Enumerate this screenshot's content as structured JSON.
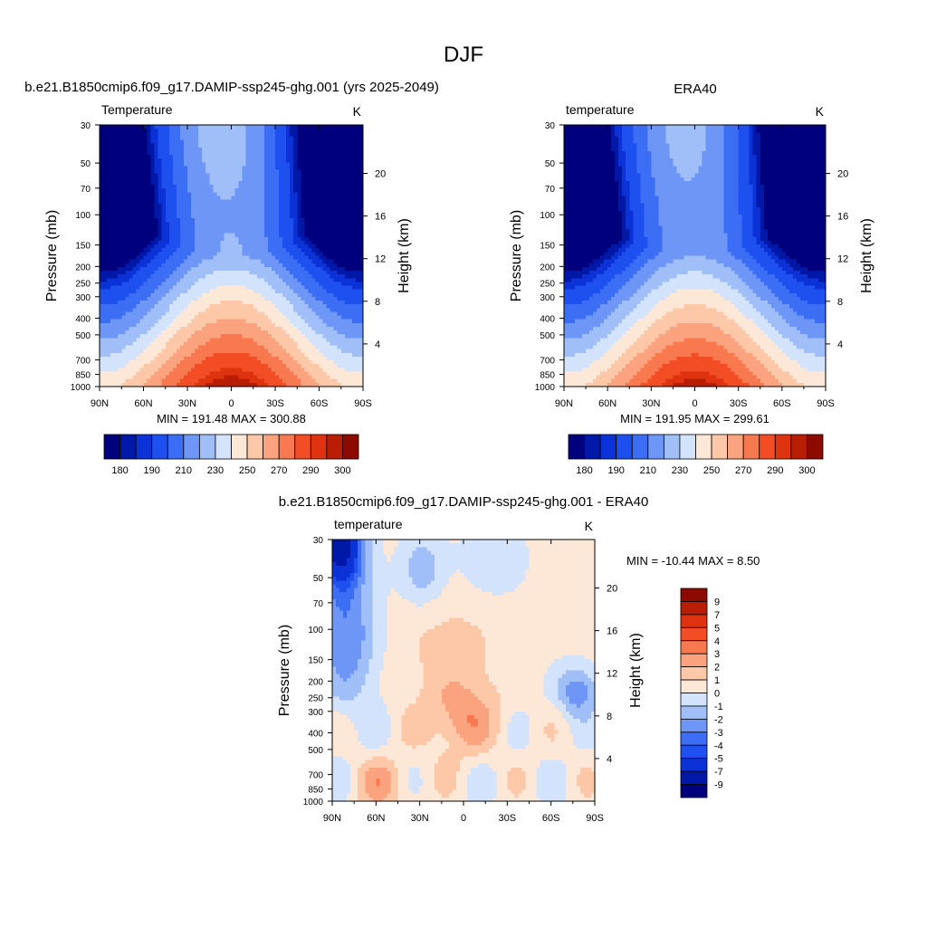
{
  "figure": {
    "season_title": "DJF"
  },
  "panels": [
    {
      "id": "model",
      "header": "b.e21.B1850cmip6.f09_g17.DAMIP-ssp245-ghg.001 (yrs 2025-2049)",
      "left_label": "Temperature",
      "right_label": "K",
      "stats": "MIN = 191.48  MAX = 300.88",
      "colorbar_tick_labels": [
        "180",
        "190",
        "210",
        "230",
        "250",
        "270",
        "290",
        "300"
      ]
    },
    {
      "id": "obs",
      "header": "ERA40",
      "left_label": "temperature",
      "right_label": "K",
      "stats": "MIN = 191.95  MAX = 299.61",
      "colorbar_tick_labels": [
        "180",
        "190",
        "210",
        "230",
        "250",
        "270",
        "290",
        "300"
      ]
    },
    {
      "id": "diff",
      "header": "b.e21.B1850cmip6.f09_g17.DAMIP-ssp245-ghg.001 - ERA40",
      "left_label": "temperature",
      "right_label": "K",
      "stats": "MIN = -10.44  MAX =   8.50",
      "colorbar_tick_labels": [
        "9",
        "7",
        "5",
        "4",
        "3",
        "2",
        "1",
        "0",
        "-1",
        "-2",
        "-3",
        "-4",
        "-5",
        "-7",
        "-9"
      ]
    }
  ],
  "axes": {
    "ylabel": "Pressure (mb)",
    "y2label": "Height (km)",
    "x_ticks": [
      "90N",
      "60N",
      "30N",
      "0",
      "30S",
      "60S",
      "90S"
    ],
    "y_ticks": [
      "30",
      "50",
      "70",
      "100",
      "150",
      "200",
      "250",
      "300",
      "400",
      "500",
      "700",
      "850",
      "1000"
    ],
    "height_ticks": [
      "20",
      "16",
      "12",
      "8",
      "4"
    ]
  },
  "chart_data": [
    {
      "type": "heatmap",
      "title": "b.e21.B1850cmip6.f09_g17.DAMIP-ssp245-ghg.001 (yrs 2025-2049)",
      "variable": "Temperature",
      "units": "K",
      "xlabel": "",
      "ylabel": "Pressure (mb)",
      "y2label": "Height (km)",
      "x_range": [
        90,
        -90
      ],
      "y_range": [
        1000,
        30
      ],
      "y_scale": "log",
      "min": 191.48,
      "max": 300.88,
      "contour_levels": [
        180,
        185,
        190,
        200,
        210,
        220,
        230,
        240,
        250,
        260,
        270,
        280,
        290,
        295,
        300
      ],
      "palette": [
        "#00007f",
        "#0018a8",
        "#0a32d6",
        "#1e50f0",
        "#3c6ef5",
        "#6e96f7",
        "#a0bff9",
        "#d2e3fb",
        "#fde8d8",
        "#fcc8a8",
        "#fba37e",
        "#f87850",
        "#f24d25",
        "#de330e",
        "#b91e05",
        "#8c0a00"
      ]
    },
    {
      "type": "heatmap",
      "title": "ERA40",
      "variable": "temperature",
      "units": "K",
      "xlabel": "",
      "ylabel": "Pressure (mb)",
      "y2label": "Height (km)",
      "x_range": [
        90,
        -90
      ],
      "y_range": [
        1000,
        30
      ],
      "y_scale": "log",
      "min": 191.95,
      "max": 299.61,
      "contour_levels": [
        180,
        185,
        190,
        200,
        210,
        220,
        230,
        240,
        250,
        260,
        270,
        280,
        290,
        295,
        300
      ],
      "palette": [
        "#00007f",
        "#0018a8",
        "#0a32d6",
        "#1e50f0",
        "#3c6ef5",
        "#6e96f7",
        "#a0bff9",
        "#d2e3fb",
        "#fde8d8",
        "#fcc8a8",
        "#fba37e",
        "#f87850",
        "#f24d25",
        "#de330e",
        "#b91e05",
        "#8c0a00"
      ]
    },
    {
      "type": "heatmap",
      "title": "b.e21.B1850cmip6.f09_g17.DAMIP-ssp245-ghg.001 - ERA40",
      "variable": "temperature",
      "units": "K",
      "xlabel": "",
      "ylabel": "Pressure (mb)",
      "y2label": "Height (km)",
      "x_range": [
        90,
        -90
      ],
      "y_range": [
        1000,
        30
      ],
      "y_scale": "log",
      "min": -10.44,
      "max": 8.5,
      "contour_levels": [
        -9,
        -7,
        -5,
        -4,
        -3,
        -2,
        -1,
        0,
        1,
        2,
        3,
        4,
        5,
        7,
        9
      ],
      "palette": [
        "#00007f",
        "#0018a8",
        "#0a32d6",
        "#1e50f0",
        "#3c6ef5",
        "#6e96f7",
        "#a0bff9",
        "#d2e3fb",
        "#fde8d8",
        "#fcc8a8",
        "#fba37e",
        "#f87850",
        "#f24d25",
        "#de330e",
        "#b91e05",
        "#8c0a00"
      ]
    }
  ]
}
